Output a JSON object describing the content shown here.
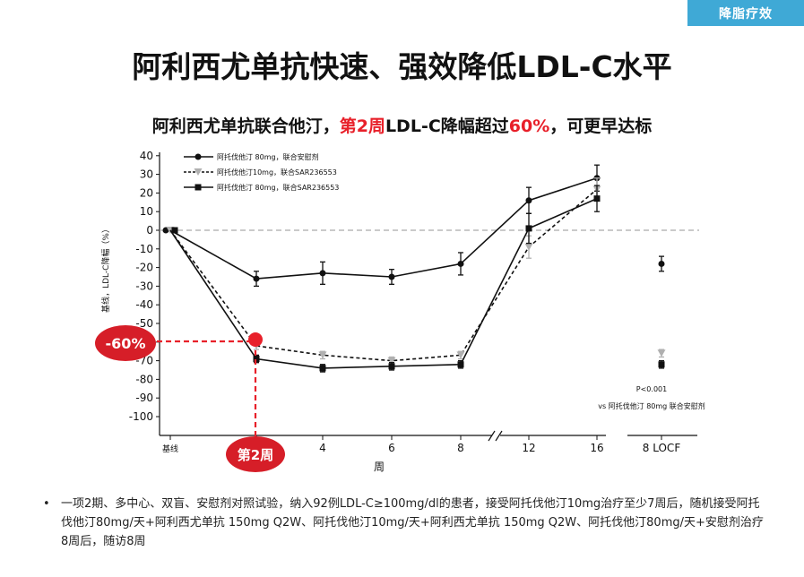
{
  "header_tag": "降脂疗效",
  "title": "阿利西尤单抗快速、强效降低LDL-C水平",
  "subtitle": {
    "part1": "阿利西尤单抗联合他汀，",
    "highlight1": "第2周",
    "part2": "LDL-C降幅超过",
    "highlight2": "60%",
    "part3": "，可更早达标"
  },
  "chart_data": {
    "type": "line",
    "title": "",
    "xlabel": "周",
    "ylabel": "基线，LDL-C降幅（%）",
    "ylim": [
      -100,
      40
    ],
    "yticks": [
      40,
      30,
      20,
      10,
      0,
      -10,
      -20,
      -30,
      -40,
      -50,
      -60,
      -70,
      -80,
      -90,
      -100
    ],
    "x_categories": [
      "基线",
      "2",
      "4",
      "6",
      "8",
      "12",
      "16",
      "8 LOCF"
    ],
    "x_tick_labels": [
      "基线",
      "4",
      "6",
      "8",
      "12",
      "16",
      "8 LOCF"
    ],
    "series": [
      {
        "name": "阿托伐他汀 80mg，联合安慰剂",
        "marker": "circle",
        "line_style": "solid",
        "color": "#111111",
        "values": [
          0,
          -26,
          -23,
          -25,
          -18,
          16,
          28,
          -18
        ],
        "errors": [
          0,
          4,
          6,
          4,
          6,
          7,
          7,
          4
        ]
      },
      {
        "name": "阿托伐他汀10mg，联合SAR236553",
        "marker": "triangle-down",
        "line_style": "dotted",
        "color": "#b0b0b0",
        "values": [
          0,
          -62,
          -67,
          -70,
          -67,
          -9,
          22,
          -66
        ],
        "errors": [
          0,
          2,
          2,
          2,
          2,
          6,
          6,
          2
        ]
      },
      {
        "name": "阿托伐他汀 80mg，联合SAR236553",
        "marker": "square",
        "line_style": "solid",
        "color": "#111111",
        "values": [
          0,
          -69,
          -74,
          -73,
          -72,
          1,
          17,
          -72
        ],
        "errors": [
          0,
          2,
          2,
          2,
          2,
          8,
          7,
          2
        ]
      }
    ],
    "annotations": {
      "p_value": "P<0.001",
      "p_compare": "vs 阿托伐他汀 80mg 联合安慰剂",
      "callout_value": "-60%",
      "callout_week": "第2周"
    },
    "grid": false,
    "legend_position": "top-left",
    "reference_line": 0
  },
  "footnote": "一项2期、多中心、双盲、安慰剂对照试验，纳入92例LDL-C≥100mg/dl的患者，接受阿托伐他汀10mg治疗至少7周后，随机接受阿托伐他汀80mg/天+阿利西尤单抗 150mg Q2W、阿托伐他汀10mg/天+阿利西尤单抗 150mg Q2W、阿托伐他汀80mg/天+安慰剂治疗8周后，随访8周"
}
